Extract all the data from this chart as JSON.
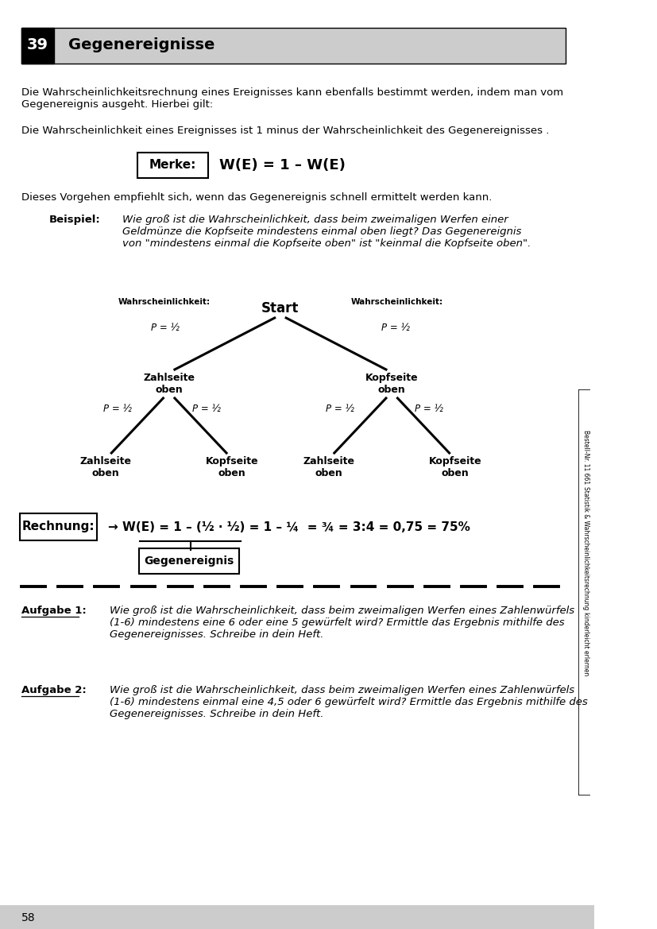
{
  "page_bg": "#ffffff",
  "header_number_text": "39",
  "header_title": "Gegenereignisse",
  "body_text1": "Die Wahrscheinlichkeitsrechnung eines Ereignisses kann ebenfalls bestimmt werden, indem man vom\nGegenereignis ausgeht. Hierbei gilt:",
  "body_text2": "Die Wahrscheinlichkeit eines Ereignisses ist 1 minus der Wahrscheinlichkeit des Gegenereignisses .",
  "merke_label": "Merke:",
  "merke_formula": "W(E) = 1 – W(E)",
  "body_text3": "Dieses Vorgehen empfiehlt sich, wenn das Gegenereignis schnell ermittelt werden kann.",
  "beispiel_label": "Beispiel:",
  "beispiel_text": "Wie groß ist die Wahrscheinlichkeit, dass beim zweimaligen Werfen einer\nGeldmünze die Kopfseite mindestens einmal oben liegt? Das Gegenereignis\nvon \"mindestens einmal die Kopfseite oben\" ist \"keinmal die Kopfseite oben\".",
  "tree_start": "Start",
  "tree_wahrsch": "Wahrscheinlichkeit:",
  "tree_p_half": "P = ½",
  "tree_zahlseite_oben": "Zahlseite\noben",
  "tree_kopfseite_oben": "Kopfseite\noben",
  "tree_zahlseite_oben2": "Zahlseite\noben",
  "tree_kopfseite_oben2": "Kopfseite\noben",
  "tree_zahlseite_oben3": "Zahlseite\noben",
  "tree_kopfseite_oben3": "Kopfseite\noben",
  "rechnung_label": "Rechnung:",
  "rechnung_formula": "→ W(E) = 1 – (½ · ½) = 1 – ¼  = ¾ = 3:4 = 0,75 = 75%",
  "gegenereignis_box": "Gegenereignis",
  "aufgabe1_label": "Aufgabe 1:",
  "aufgabe1_text": "Wie groß ist die Wahrscheinlichkeit, dass beim zweimaligen Werfen eines Zahlenwürfels\n(1-6) mindestens eine 6 oder eine 5 gewürfelt wird? Ermittle das Ergebnis mithilfe des\nGegenereignisses. Schreibe in dein Heft.",
  "aufgabe2_label": "Aufgabe 2:",
  "aufgabe2_text": "Wie groß ist die Wahrscheinlichkeit, dass beim zweimaligen Werfen eines Zahlenwürfels\n(1-6) mindestens einmal eine 4,5 oder 6 gewürfelt wird? Ermittle das Ergebnis mithilfe des\nGegenereignisses. Schreibe in dein Heft.",
  "page_number": "58",
  "side_text1": "Statistik & Wahrscheinlichkeitsrechnung",
  "side_text2": "kinderleicht erlernen",
  "side_text3": "Bestell-Nr. 11 661"
}
